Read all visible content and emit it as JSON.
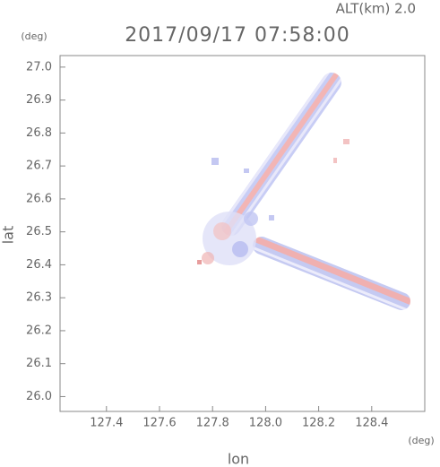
{
  "chart_data": {
    "type": "map",
    "title": "2017/09/17 07:58:00",
    "subtitle": "ALT(km) 2.0",
    "x_label": "lon",
    "y_label": "lat",
    "x_unit": "(deg)",
    "y_unit": "(deg)",
    "xlim": [
      127.225,
      128.6
    ],
    "ylim": [
      25.955,
      27.035
    ],
    "xticks": [
      {
        "value": 127.4,
        "label": "127.4"
      },
      {
        "value": 127.6,
        "label": "127.6"
      },
      {
        "value": 127.8,
        "label": "127.8"
      },
      {
        "value": 128.0,
        "label": "128.0"
      },
      {
        "value": 128.2,
        "label": "128.2"
      },
      {
        "value": 128.4,
        "label": "128.4"
      }
    ],
    "yticks": [
      {
        "value": 26.0,
        "label": "26.0"
      },
      {
        "value": 26.1,
        "label": "26.1"
      },
      {
        "value": 26.2,
        "label": "26.2"
      },
      {
        "value": 26.3,
        "label": "26.3"
      },
      {
        "value": 26.4,
        "label": "26.4"
      },
      {
        "value": 26.5,
        "label": "26.5"
      },
      {
        "value": 26.6,
        "label": "26.6"
      },
      {
        "value": 26.7,
        "label": "26.7"
      },
      {
        "value": 26.8,
        "label": "26.8"
      },
      {
        "value": 26.9,
        "label": "26.9"
      },
      {
        "value": 27.0,
        "label": "27.0"
      }
    ]
  }
}
